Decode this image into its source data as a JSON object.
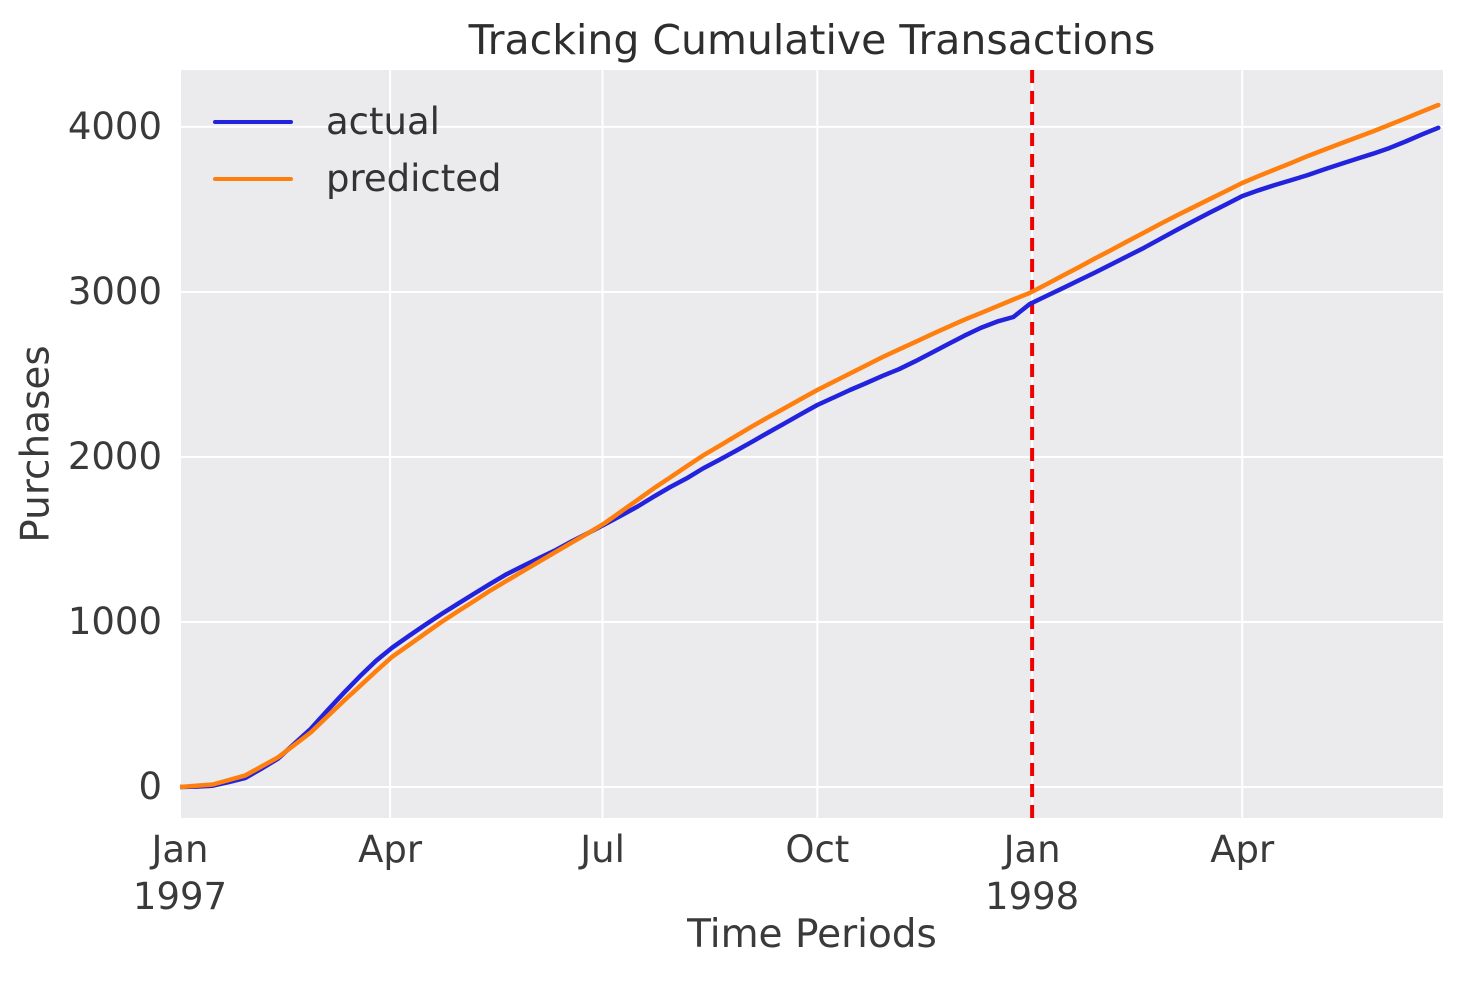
{
  "figure": {
    "title": "Tracking Cumulative Transactions",
    "xlabel": "Time Periods",
    "ylabel": "Purchases"
  },
  "colors": {
    "plot_background": "#ebebee",
    "grid": "#ffffff",
    "text": "#3a3a3a",
    "title_text": "#2e2e2e",
    "actual": "#2323dd",
    "predicted": "#ff7f0e",
    "vline": "#ee0000"
  },
  "legend": {
    "position": "upper left",
    "items": [
      {
        "label": "actual",
        "color": "#2323dd"
      },
      {
        "label": "predicted",
        "color": "#ff7f0e"
      }
    ]
  },
  "chart_data": {
    "type": "line",
    "title": "Tracking Cumulative Transactions",
    "xlabel": "Time Periods",
    "ylabel": "Purchases",
    "x_unit": "days since 1997-01-01, weekly samples",
    "x_domain": [
      0,
      541
    ],
    "y_domain": [
      -188,
      4345
    ],
    "grid": true,
    "legend_position": "upper left",
    "y_ticks": [
      0,
      1000,
      2000,
      3000,
      4000
    ],
    "x_ticks": [
      {
        "day": 0,
        "label": "Jan",
        "sublabel": "1997"
      },
      {
        "day": 90,
        "label": "Apr",
        "sublabel": ""
      },
      {
        "day": 181,
        "label": "Jul",
        "sublabel": ""
      },
      {
        "day": 273,
        "label": "Oct",
        "sublabel": ""
      },
      {
        "day": 365,
        "label": "Jan",
        "sublabel": "1998"
      },
      {
        "day": 455,
        "label": "Apr",
        "sublabel": ""
      }
    ],
    "annotations": [
      {
        "type": "vline",
        "x": 365,
        "color": "#ee0000",
        "style": "dashed"
      }
    ],
    "x": [
      0,
      7,
      14,
      21,
      28,
      35,
      42,
      49,
      56,
      63,
      70,
      77,
      84,
      91,
      98,
      105,
      112,
      119,
      126,
      133,
      140,
      147,
      154,
      161,
      168,
      175,
      182,
      189,
      196,
      203,
      210,
      217,
      224,
      231,
      238,
      245,
      252,
      259,
      266,
      273,
      280,
      287,
      294,
      301,
      308,
      315,
      322,
      329,
      336,
      343,
      350,
      357,
      364,
      371,
      378,
      385,
      392,
      399,
      406,
      413,
      420,
      427,
      434,
      441,
      448,
      455,
      462,
      469,
      476,
      483,
      490,
      497,
      504,
      511,
      518,
      525,
      532,
      539
    ],
    "series": [
      {
        "name": "actual",
        "color": "#2323dd",
        "values": [
          0,
          2,
          8,
          30,
          55,
          112,
          172,
          262,
          352,
          462,
          568,
          670,
          765,
          845,
          915,
          982,
          1048,
          1110,
          1172,
          1232,
          1290,
          1340,
          1388,
          1436,
          1490,
          1540,
          1592,
          1645,
          1700,
          1760,
          1818,
          1870,
          1930,
          1982,
          2036,
          2092,
          2148,
          2204,
          2260,
          2315,
          2360,
          2406,
          2448,
          2492,
          2532,
          2580,
          2632,
          2684,
          2735,
          2782,
          2820,
          2848,
          2927,
          2975,
          3022,
          3070,
          3118,
          3168,
          3218,
          3268,
          3322,
          3376,
          3428,
          3480,
          3530,
          3581,
          3616,
          3648,
          3678,
          3708,
          3742,
          3775,
          3806,
          3838,
          3872,
          3912,
          3955,
          3995
        ]
      },
      {
        "name": "predicted",
        "color": "#ff7f0e",
        "values": [
          0,
          8,
          15,
          42,
          70,
          125,
          180,
          255,
          330,
          425,
          520,
          611,
          702,
          790,
          860,
          930,
          1000,
          1064,
          1127,
          1191,
          1250,
          1308,
          1367,
          1425,
          1483,
          1540,
          1600,
          1670,
          1740,
          1810,
          1876,
          1943,
          2008,
          2067,
          2126,
          2185,
          2241,
          2296,
          2351,
          2406,
          2456,
          2506,
          2556,
          2606,
          2652,
          2697,
          2743,
          2788,
          2832,
          2872,
          2913,
          2954,
          2994,
          3045,
          3098,
          3150,
          3203,
          3255,
          3308,
          3360,
          3413,
          3464,
          3513,
          3562,
          3611,
          3660,
          3702,
          3742,
          3782,
          3823,
          3861,
          3899,
          3936,
          3973,
          4012,
          4052,
          4093,
          4133
        ]
      }
    ]
  }
}
